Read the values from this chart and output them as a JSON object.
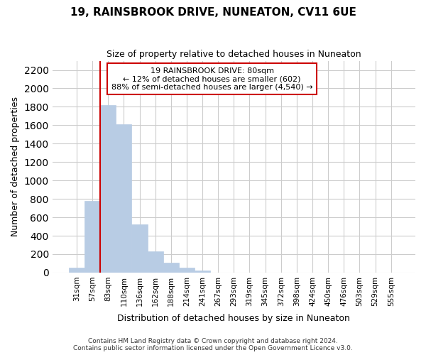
{
  "title": "19, RAINSBROOK DRIVE, NUNEATON, CV11 6UE",
  "subtitle": "Size of property relative to detached houses in Nuneaton",
  "xlabel": "Distribution of detached houses by size in Nuneaton",
  "ylabel": "Number of detached properties",
  "bar_labels": [
    "31sqm",
    "57sqm",
    "83sqm",
    "110sqm",
    "136sqm",
    "162sqm",
    "188sqm",
    "214sqm",
    "241sqm",
    "267sqm",
    "293sqm",
    "319sqm",
    "345sqm",
    "372sqm",
    "398sqm",
    "424sqm",
    "450sqm",
    "476sqm",
    "503sqm",
    "529sqm",
    "555sqm"
  ],
  "bar_values": [
    50,
    780,
    1820,
    1610,
    520,
    230,
    110,
    55,
    25,
    0,
    0,
    0,
    0,
    0,
    0,
    0,
    0,
    0,
    0,
    0,
    0
  ],
  "bar_color": "#b8cce4",
  "bar_edge_color": "#b8cce4",
  "highlight_line_color": "#cc0000",
  "vline_x_index": 2,
  "ylim": [
    0,
    2300
  ],
  "yticks": [
    0,
    200,
    400,
    600,
    800,
    1000,
    1200,
    1400,
    1600,
    1800,
    2000,
    2200
  ],
  "annotation_title": "19 RAINSBROOK DRIVE: 80sqm",
  "annotation_line1": "← 12% of detached houses are smaller (602)",
  "annotation_line2": "88% of semi-detached houses are larger (4,540) →",
  "footer_line1": "Contains HM Land Registry data © Crown copyright and database right 2024.",
  "footer_line2": "Contains public sector information licensed under the Open Government Licence v3.0.",
  "background_color": "#ffffff",
  "grid_color": "#cccccc"
}
